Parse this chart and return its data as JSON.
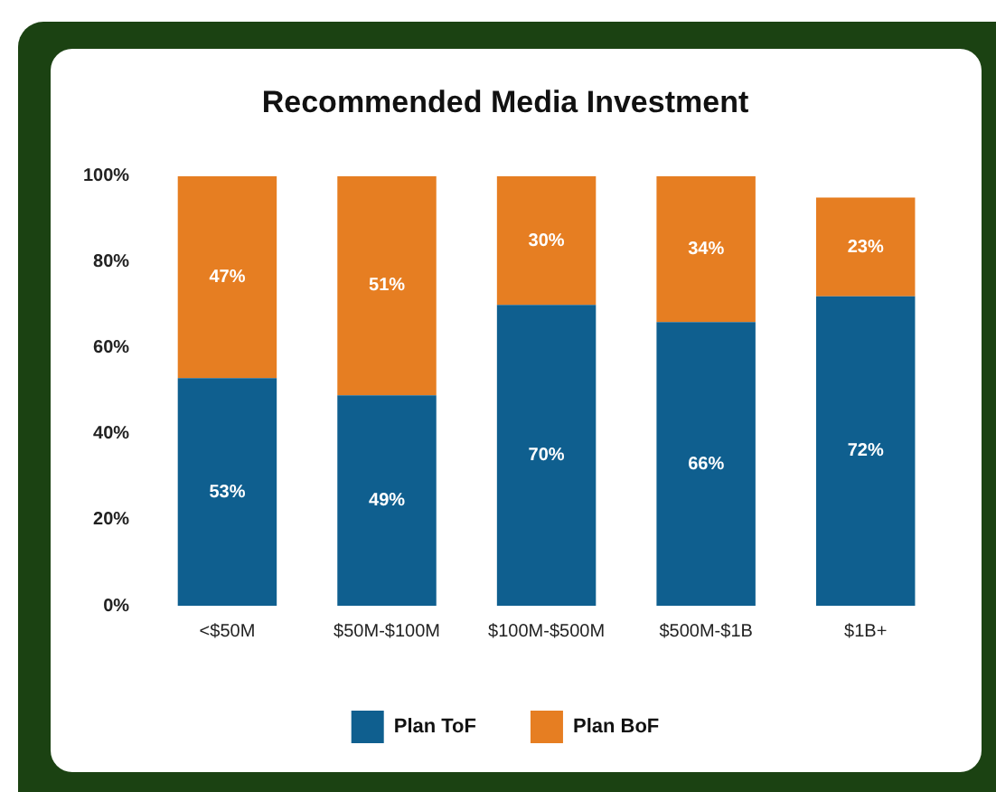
{
  "chart_data": {
    "type": "bar",
    "title": "Recommended Media Investment",
    "categories": [
      "<$50M",
      "$50M-$100M",
      "$100M-$500M",
      "$500M-$1B",
      "$1B+"
    ],
    "series": [
      {
        "name": "Plan ToF",
        "color": "#0f5f8f",
        "values": [
          53,
          49,
          70,
          66,
          72
        ],
        "value_labels": [
          "53%",
          "49%",
          "70%",
          "66%",
          "72%"
        ]
      },
      {
        "name": "Plan BoF",
        "color": "#e67e22",
        "values": [
          47,
          51,
          30,
          34,
          23
        ],
        "value_labels": [
          "47%",
          "51%",
          "30%",
          "34%",
          "23%"
        ]
      }
    ],
    "stacked": true,
    "ylim": [
      0,
      100
    ],
    "yticks": [
      {
        "value": 0,
        "label": "0%"
      },
      {
        "value": 20,
        "label": "20%"
      },
      {
        "value": 40,
        "label": "40%"
      },
      {
        "value": 60,
        "label": "60%"
      },
      {
        "value": 80,
        "label": "80%"
      },
      {
        "value": 100,
        "label": "100%"
      }
    ],
    "grid": false,
    "legend": "bottom"
  }
}
